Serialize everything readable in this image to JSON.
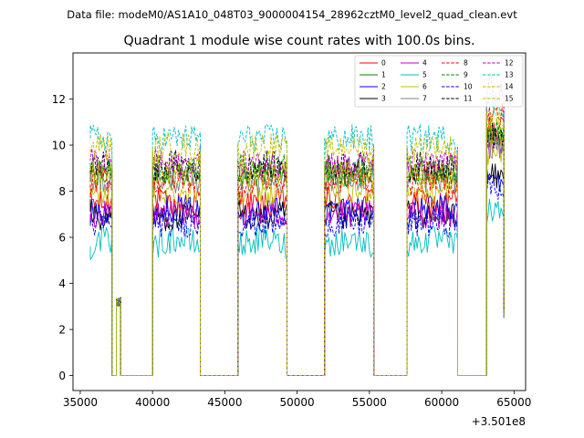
{
  "chart_data": {
    "type": "line",
    "suptitle": "Data file: modeM0/AS1A10_048T03_9000004154_28962cztM0_level2_quad_clean.evt",
    "title": "Quadrant 1 module wise count rates with 100.0s bins.",
    "xlabel": "",
    "ylabel": "",
    "x_offset_label": "+3.501e8",
    "xlim": [
      34500,
      65800
    ],
    "ylim": [
      -0.65,
      14.0
    ],
    "x_ticks": [
      35000,
      40000,
      45000,
      50000,
      55000,
      60000,
      65000
    ],
    "x_tick_labels": [
      "35000",
      "40000",
      "45000",
      "50000",
      "55000",
      "60000",
      "65000"
    ],
    "y_ticks": [
      0,
      2,
      4,
      6,
      8,
      10,
      12
    ],
    "y_tick_labels": [
      "0",
      "2",
      "4",
      "6",
      "8",
      "10",
      "12"
    ],
    "legend_position": "top-right",
    "segments": [
      {
        "start": 35700,
        "end": 37200
      },
      {
        "start": 37500,
        "end": 37800
      },
      {
        "start": 40000,
        "end": 43300
      },
      {
        "start": 45900,
        "end": 49300
      },
      {
        "start": 51900,
        "end": 55300
      },
      {
        "start": 57600,
        "end": 61100
      },
      {
        "start": 63100,
        "end": 64300
      }
    ],
    "gaps": [
      {
        "start": 37200,
        "end": 37500
      },
      {
        "start": 37800,
        "end": 40000
      },
      {
        "start": 43300,
        "end": 45900
      },
      {
        "start": 49300,
        "end": 51900
      },
      {
        "start": 55300,
        "end": 57600
      },
      {
        "start": 61100,
        "end": 63100
      }
    ],
    "series": [
      {
        "name": "0",
        "color": "#ff0000",
        "dash": "solid",
        "level": 7.7
      },
      {
        "name": "1",
        "color": "#008000",
        "dash": "solid",
        "level": 8.8
      },
      {
        "name": "2",
        "color": "#0000ff",
        "dash": "solid",
        "level": 7.0
      },
      {
        "name": "3",
        "color": "#000000",
        "dash": "solid",
        "level": 7.1
      },
      {
        "name": "4",
        "color": "#bf00bf",
        "dash": "solid",
        "level": 7.0
      },
      {
        "name": "5",
        "color": "#00bfbf",
        "dash": "solid",
        "level": 5.6
      },
      {
        "name": "6",
        "color": "#bfbf00",
        "dash": "solid",
        "level": 8.2
      },
      {
        "name": "7",
        "color": "#808080",
        "dash": "solid",
        "level": 8.5
      },
      {
        "name": "8",
        "color": "#ff0000",
        "dash": "dashed",
        "level": 8.3
      },
      {
        "name": "9",
        "color": "#008000",
        "dash": "dashed",
        "level": 9.1
      },
      {
        "name": "10",
        "color": "#0000ff",
        "dash": "dashed",
        "level": 6.6
      },
      {
        "name": "11",
        "color": "#000000",
        "dash": "dashed",
        "level": 8.9
      },
      {
        "name": "12",
        "color": "#bf00bf",
        "dash": "dashed",
        "level": 9.4
      },
      {
        "name": "13",
        "color": "#00bfbf",
        "dash": "dashed",
        "level": 10.3
      },
      {
        "name": "14",
        "color": "#bfbf00",
        "dash": "dashed",
        "level": 9.7
      },
      {
        "name": "15",
        "color": "#bfbf00",
        "dash": "dashed",
        "level": 9.0
      }
    ]
  }
}
